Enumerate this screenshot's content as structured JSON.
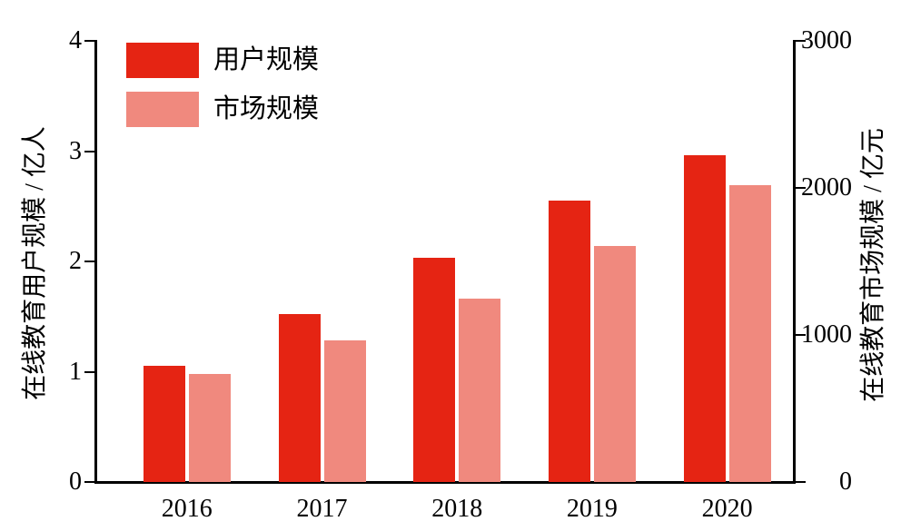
{
  "chart_data": {
    "type": "bar",
    "categories": [
      "2016",
      "2017",
      "2018",
      "2019",
      "2020"
    ],
    "series": [
      {
        "name": "用户规模",
        "axis": "left",
        "color": "#e52413",
        "values": [
          1.05,
          1.52,
          2.03,
          2.55,
          2.96
        ]
      },
      {
        "name": "市场规模",
        "axis": "right",
        "color": "#f0897e",
        "values": [
          735,
          965,
          1250,
          1605,
          2020
        ]
      }
    ],
    "left_axis": {
      "label": "在线教育用户规模 / 亿人",
      "min": 0,
      "max": 4,
      "ticks": [
        0,
        1,
        2,
        3,
        4
      ]
    },
    "right_axis": {
      "label": "在线教育市场规模 / 亿元",
      "min": 0,
      "max": 3000,
      "ticks": [
        0,
        1000,
        2000,
        3000
      ]
    },
    "grid": false,
    "legend_position": "top-left",
    "background": "#ffffff",
    "axis_color": "#000000"
  }
}
